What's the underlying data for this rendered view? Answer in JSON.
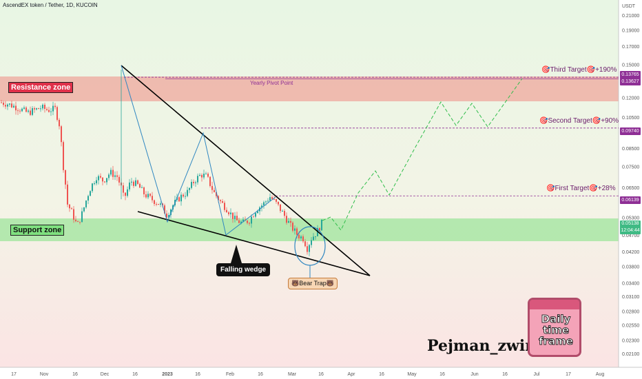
{
  "header": {
    "title": "AscendEX token / Tether, 1D, KUCOIN"
  },
  "chart_data": {
    "type": "candlestick",
    "title": "AscendEX token / Tether, 1D, KUCOIN",
    "y_axis": {
      "unit": "USDT",
      "scale": "log",
      "ticks": [
        "0.21000",
        "0.19000",
        "0.17000",
        "0.15000",
        "0.12000",
        "0.10500",
        "0.09500",
        "0.08500",
        "0.07500",
        "0.06500",
        "0.05900",
        "0.05300",
        "0.04700",
        "0.04200",
        "0.03800",
        "0.03400",
        "0.03100",
        "0.02800",
        "0.02550",
        "0.02300",
        "0.02100"
      ]
    },
    "x_axis": {
      "ticks": [
        "17",
        "Nov",
        "16",
        "Dec",
        "16",
        "2023",
        "16",
        "Feb",
        "16",
        "Mar",
        "16",
        "Apr",
        "16",
        "May",
        "16",
        "Jun",
        "16",
        "Jul",
        "17",
        "Aug"
      ]
    },
    "price_tags": [
      {
        "value": "0.13765",
        "color": "#8e2f95"
      },
      {
        "value": "0.13627",
        "color": "#8e2f95"
      },
      {
        "value": "0.09740",
        "color": "#8e2f95"
      },
      {
        "value": "0.06139",
        "color": "#8e2f95"
      },
      {
        "value": "0.05138",
        "sub": "12:04:44",
        "color": "#3fba84"
      }
    ],
    "zones": [
      {
        "name": "Resistance zone",
        "color": "#ef9a9a"
      },
      {
        "name": "Support zone",
        "color": "#9be39b"
      }
    ],
    "pivot_label": "Yearly Pivot Point",
    "targets": [
      {
        "label": "Third Target",
        "gain": "+190%",
        "price": 0.13765
      },
      {
        "label": "Second Target",
        "gain": "+90%",
        "price": 0.0974
      },
      {
        "label": "First Target",
        "gain": "+28%",
        "price": 0.06139
      }
    ],
    "pattern_label": "Falling wedge",
    "bear_trap_label": "Bear Trap",
    "last_price": 0.05138,
    "up_color": "#26a69a",
    "down_color": "#ef5350"
  },
  "branding": {
    "watermark": "Pejman_zwin",
    "calendar_text": "Daily time frame"
  }
}
